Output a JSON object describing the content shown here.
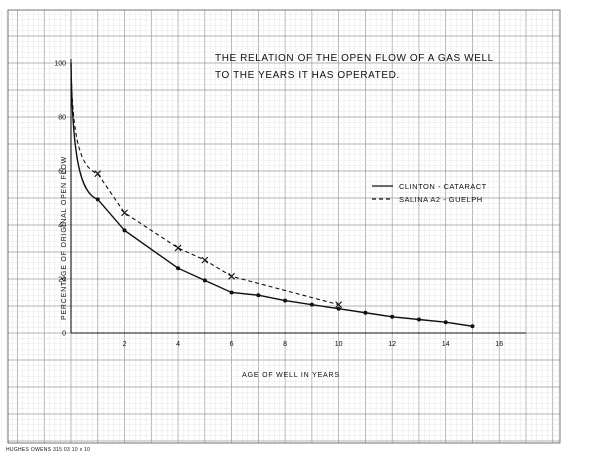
{
  "chart_data": {
    "type": "line",
    "title_lines": [
      "THE RELATION OF THE OPEN FLOW OF A GAS WELL",
      "TO THE YEARS IT HAS OPERATED."
    ],
    "xlabel": "AGE OF WELL IN YEARS",
    "ylabel": "PERCENTAGE OF ORIGINAL OPEN FLOW",
    "xlim": [
      0,
      17
    ],
    "ylim": [
      0,
      100
    ],
    "x_ticks": [
      2,
      4,
      6,
      8,
      10,
      12,
      14,
      16
    ],
    "y_ticks": [
      0,
      20,
      40,
      60,
      80,
      100
    ],
    "grid": true,
    "legend_position": "right",
    "series": [
      {
        "name": "CLINTON - CATARACT",
        "style": "solid",
        "marker": "dot",
        "color": "#111111",
        "x": [
          1,
          2,
          4,
          5,
          6,
          7,
          8,
          9,
          10,
          11,
          12,
          13,
          14,
          15
        ],
        "y": [
          49.5,
          38,
          24,
          19.5,
          15,
          14,
          12,
          10.5,
          9,
          7.5,
          6,
          5,
          4,
          2.5
        ]
      },
      {
        "name": "SALINA A2 - GUELPH",
        "style": "dashed",
        "marker": "x",
        "color": "#111111",
        "x": [
          1,
          2,
          4,
          5,
          6,
          10
        ],
        "y": [
          59,
          44.5,
          31.5,
          27,
          21,
          10.5
        ]
      }
    ]
  },
  "footer": "HUGHES OWENS 315 03 10 x 10"
}
